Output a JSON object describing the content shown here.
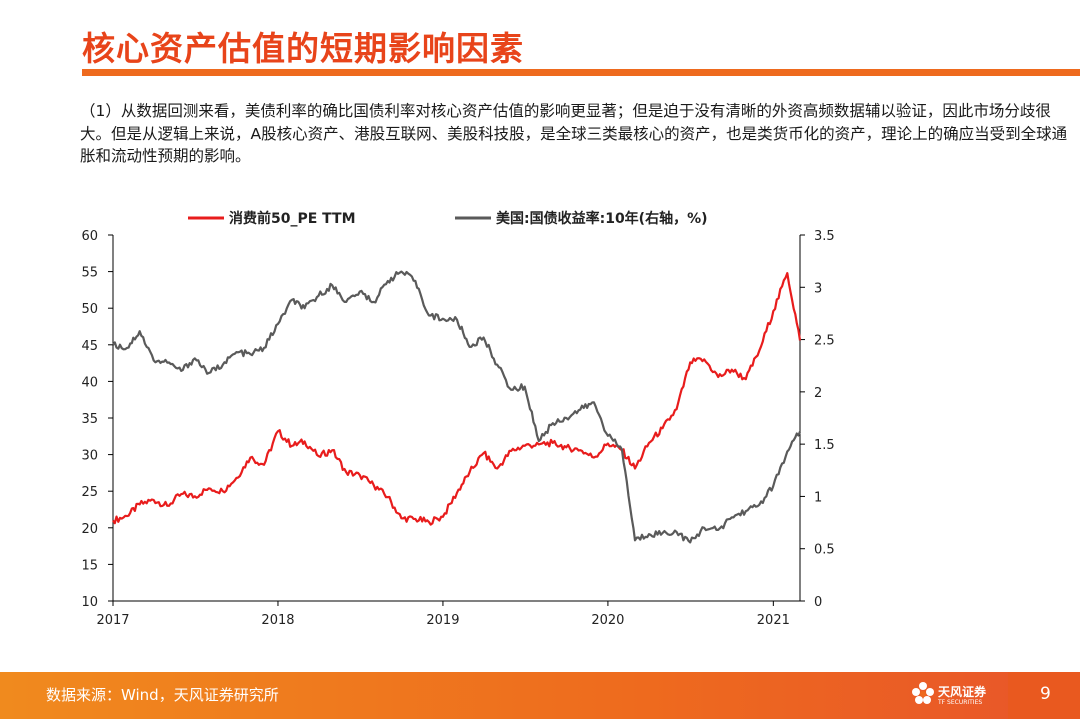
{
  "header": {
    "title": "核心资产估值的短期影响因素"
  },
  "body_text": "（1）从数据回测来看，美债利率的确比国债利率对核心资产估值的影响更显著；但是迫于没有清晰的外资高频数据辅以验证，因此市场分歧很大。但是从逻辑上来说，A股核心资产、港股互联网、美股科技股，是全球三类最核心的资产，也是类货币化的资产，理论上的确应当受到全球通胀和流动性预期的影响。",
  "footer": {
    "source": "数据来源：Wind，天风证券研究所",
    "logo_text": "天风证券",
    "logo_sub": "TF SECURITIES",
    "page_number": "9"
  },
  "colors": {
    "accent": "#e8441a",
    "rule": "#ee6a1e",
    "series_pe": "#e81c1c",
    "series_yield": "#5a5a5a"
  },
  "chart_data": {
    "type": "line",
    "title": "",
    "legend_position": "top",
    "grid": false,
    "x_ticks": [
      "2017",
      "2018",
      "2019",
      "2020",
      "2021"
    ],
    "x_range": [
      "2017-01-01",
      "2021-03-01"
    ],
    "left_axis": {
      "ylim": [
        10,
        60
      ],
      "ticks": [
        "10",
        "15",
        "20",
        "25",
        "30",
        "35",
        "40",
        "45",
        "50",
        "55",
        "60"
      ]
    },
    "right_axis": {
      "ylim": [
        0,
        3.5
      ],
      "ticks": [
        "0",
        "0.5",
        "1",
        "1.5",
        "2",
        "2.5",
        "3",
        "3.5"
      ]
    },
    "series": [
      {
        "name": "消费前50_PE TTM",
        "axis": "left",
        "color": "#e81c1c",
        "points": [
          [
            "2017-01-01",
            21.0
          ],
          [
            "2017-02-01",
            21.6
          ],
          [
            "2017-03-01",
            23.2
          ],
          [
            "2017-04-01",
            23.8
          ],
          [
            "2017-05-01",
            23.0
          ],
          [
            "2017-06-01",
            24.6
          ],
          [
            "2017-07-01",
            24.3
          ],
          [
            "2017-08-01",
            25.4
          ],
          [
            "2017-09-01",
            25.0
          ],
          [
            "2017-10-01",
            26.8
          ],
          [
            "2017-11-01",
            29.6
          ],
          [
            "2017-12-01",
            28.6
          ],
          [
            "2018-01-01",
            33.2
          ],
          [
            "2018-02-01",
            31.2
          ],
          [
            "2018-03-01",
            31.8
          ],
          [
            "2018-04-01",
            29.8
          ],
          [
            "2018-05-01",
            30.6
          ],
          [
            "2018-06-01",
            27.6
          ],
          [
            "2018-07-01",
            27.2
          ],
          [
            "2018-08-01",
            25.8
          ],
          [
            "2018-09-01",
            24.2
          ],
          [
            "2018-10-01",
            21.3
          ],
          [
            "2018-11-01",
            21.2
          ],
          [
            "2018-12-01",
            20.8
          ],
          [
            "2019-01-01",
            21.5
          ],
          [
            "2019-02-01",
            24.8
          ],
          [
            "2019-03-01",
            27.6
          ],
          [
            "2019-04-01",
            30.2
          ],
          [
            "2019-05-01",
            28.1
          ],
          [
            "2019-06-01",
            30.5
          ],
          [
            "2019-07-01",
            31.2
          ],
          [
            "2019-08-01",
            31.4
          ],
          [
            "2019-09-01",
            31.6
          ],
          [
            "2019-10-01",
            31.0
          ],
          [
            "2019-11-01",
            30.6
          ],
          [
            "2019-12-01",
            29.6
          ],
          [
            "2020-01-01",
            31.5
          ],
          [
            "2020-02-01",
            30.6
          ],
          [
            "2020-03-01",
            28.1
          ],
          [
            "2020-04-01",
            31.6
          ],
          [
            "2020-05-01",
            33.6
          ],
          [
            "2020-06-01",
            36.2
          ],
          [
            "2020-07-01",
            42.6
          ],
          [
            "2020-08-01",
            43.0
          ],
          [
            "2020-09-01",
            40.6
          ],
          [
            "2020-10-01",
            41.6
          ],
          [
            "2020-11-01",
            40.3
          ],
          [
            "2020-12-01",
            44.2
          ],
          [
            "2021-01-01",
            49.6
          ],
          [
            "2021-02-01",
            54.8
          ],
          [
            "2021-03-01",
            45.6
          ]
        ]
      },
      {
        "name": "美国:国债收益率:10年(右轴，%)",
        "axis": "right",
        "color": "#5a5a5a",
        "points": [
          [
            "2017-01-01",
            2.45
          ],
          [
            "2017-02-01",
            2.42
          ],
          [
            "2017-03-01",
            2.58
          ],
          [
            "2017-04-01",
            2.3
          ],
          [
            "2017-05-01",
            2.28
          ],
          [
            "2017-06-01",
            2.2
          ],
          [
            "2017-07-01",
            2.32
          ],
          [
            "2017-08-01",
            2.18
          ],
          [
            "2017-09-01",
            2.26
          ],
          [
            "2017-10-01",
            2.38
          ],
          [
            "2017-11-01",
            2.36
          ],
          [
            "2017-12-01",
            2.42
          ],
          [
            "2018-01-01",
            2.65
          ],
          [
            "2018-02-01",
            2.88
          ],
          [
            "2018-03-01",
            2.8
          ],
          [
            "2018-04-01",
            2.92
          ],
          [
            "2018-05-01",
            3.02
          ],
          [
            "2018-06-01",
            2.86
          ],
          [
            "2018-07-01",
            2.96
          ],
          [
            "2018-08-01",
            2.86
          ],
          [
            "2018-09-01",
            3.06
          ],
          [
            "2018-10-01",
            3.15
          ],
          [
            "2018-11-01",
            3.06
          ],
          [
            "2018-12-01",
            2.73
          ],
          [
            "2019-01-01",
            2.7
          ],
          [
            "2019-02-01",
            2.69
          ],
          [
            "2019-03-01",
            2.43
          ],
          [
            "2019-04-01",
            2.52
          ],
          [
            "2019-05-01",
            2.26
          ],
          [
            "2019-06-01",
            2.02
          ],
          [
            "2019-07-01",
            2.05
          ],
          [
            "2019-08-01",
            1.53
          ],
          [
            "2019-09-01",
            1.7
          ],
          [
            "2019-10-01",
            1.75
          ],
          [
            "2019-11-01",
            1.83
          ],
          [
            "2019-12-01",
            1.9
          ],
          [
            "2020-01-01",
            1.58
          ],
          [
            "2020-02-01",
            1.45
          ],
          [
            "2020-03-01",
            0.58
          ],
          [
            "2020-04-01",
            0.64
          ],
          [
            "2020-05-01",
            0.65
          ],
          [
            "2020-06-01",
            0.66
          ],
          [
            "2020-07-01",
            0.56
          ],
          [
            "2020-08-01",
            0.7
          ],
          [
            "2020-09-01",
            0.68
          ],
          [
            "2020-10-01",
            0.8
          ],
          [
            "2020-11-01",
            0.86
          ],
          [
            "2020-12-01",
            0.92
          ],
          [
            "2021-01-01",
            1.1
          ],
          [
            "2021-02-01",
            1.43
          ],
          [
            "2021-03-01",
            1.62
          ]
        ]
      }
    ]
  }
}
